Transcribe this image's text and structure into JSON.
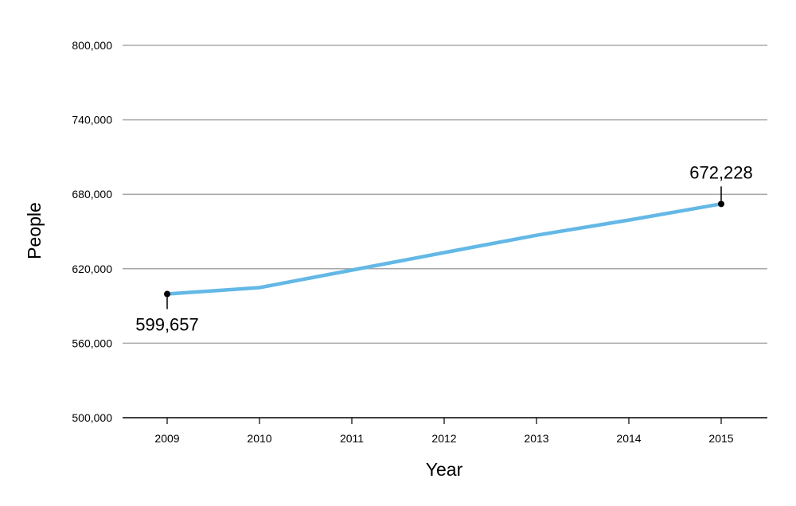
{
  "chart_data": {
    "type": "line",
    "title": "",
    "xlabel": "Year",
    "ylabel": "People",
    "x": [
      2009,
      2010,
      2011,
      2012,
      2013,
      2014,
      2015
    ],
    "x_tick_labels": [
      "2009",
      "2010",
      "2011",
      "2012",
      "2013",
      "2014",
      "2015"
    ],
    "series": [
      {
        "values": [
          599657,
          604800,
          618900,
          633000,
          647000,
          659200,
          672228
        ]
      }
    ],
    "ylim": [
      500000,
      800000
    ],
    "yticks": [
      500000,
      560000,
      620000,
      680000,
      740000,
      800000
    ],
    "y_tick_labels": [
      "500,000",
      "560,000",
      "620,000",
      "680,000",
      "740,000",
      "800,000"
    ],
    "grid": "horizontal",
    "annotations": [
      {
        "x": 2009,
        "y": 599657,
        "text": "599,657",
        "placement": "below"
      },
      {
        "x": 2015,
        "y": 672228,
        "text": "672,228",
        "placement": "above"
      }
    ],
    "colors": {
      "line": "#63b8e6",
      "grid": "#a8a8a8",
      "axis": "#000000",
      "text": "#000000",
      "marker": "#000000"
    }
  }
}
